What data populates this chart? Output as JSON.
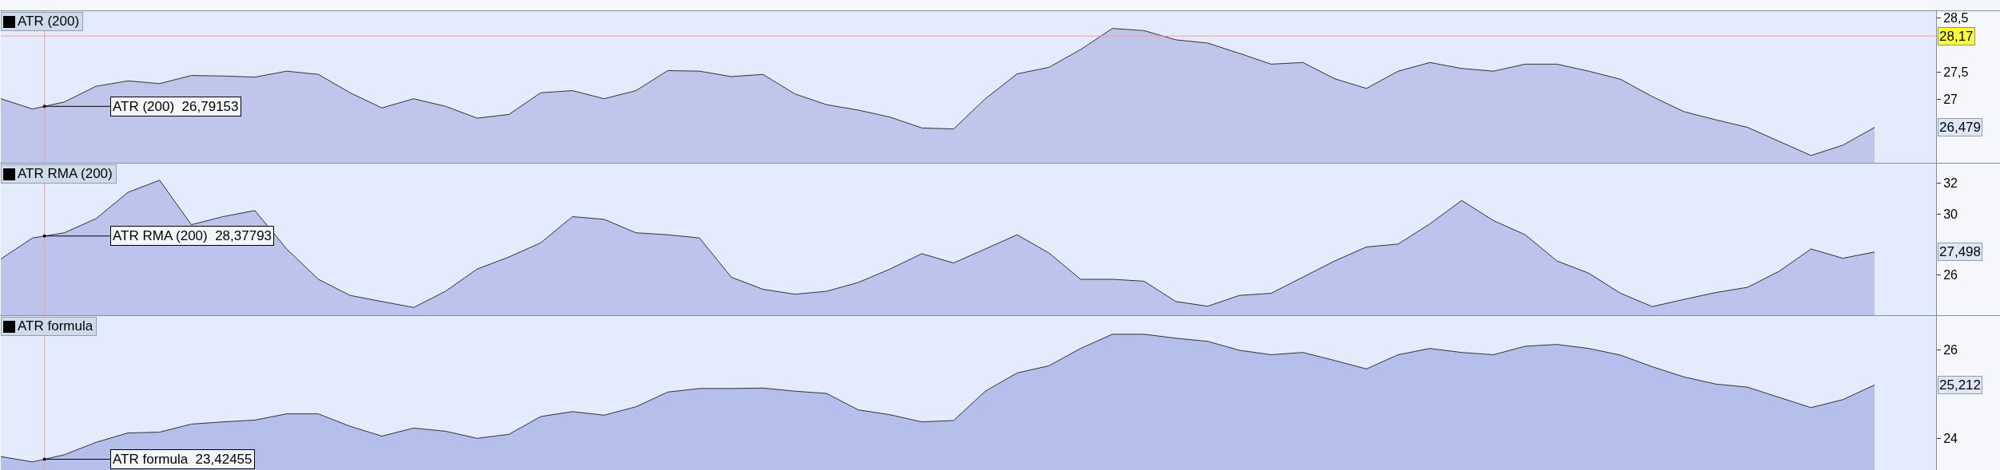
{
  "chart_data": [
    {
      "type": "area",
      "title": "ATR (200)",
      "color": "#c0c6eb",
      "tick_labels": "y",
      "grid": false,
      "categories": [
        null,
        null,
        null,
        null,
        null,
        null,
        null,
        null,
        null,
        null,
        null,
        null,
        null,
        null,
        null,
        null,
        null,
        null,
        null,
        null,
        null,
        null,
        null,
        null,
        null,
        null,
        null,
        null,
        null,
        null,
        null,
        null,
        null,
        null,
        null,
        null,
        null,
        null,
        null,
        null,
        null,
        null,
        null,
        null,
        null,
        null,
        null,
        null,
        null,
        null,
        null,
        null,
        null,
        null,
        null,
        null,
        null,
        null,
        null,
        null
      ],
      "values": [
        27.01,
        26.82,
        26.95,
        27.24,
        27.34,
        27.29,
        27.44,
        27.43,
        27.41,
        27.52,
        27.46,
        27.12,
        26.84,
        27.01,
        26.87,
        26.65,
        26.72,
        27.12,
        27.16,
        27.01,
        27.16,
        27.53,
        27.52,
        27.42,
        27.46,
        27.1,
        26.9,
        26.8,
        26.67,
        26.47,
        26.45,
        27.01,
        27.47,
        27.59,
        27.92,
        28.31,
        28.27,
        28.1,
        28.04,
        27.85,
        27.65,
        27.68,
        27.38,
        27.2,
        27.52,
        27.68,
        27.57,
        27.52,
        27.65,
        27.65,
        27.52,
        27.37,
        27.05,
        26.77,
        26.62,
        26.48,
        26.22,
        25.96,
        26.15,
        26.48
      ],
      "ylim": [
        25.81,
        28.63
      ],
      "yticks": [
        27,
        {
          "value": 27.5,
          "label": "27,5"
        },
        {
          "value": 28.5,
          "label": "28,5"
        }
      ],
      "ref_lines": [
        {
          "axis": "y",
          "value": 28.17,
          "label": "28,17",
          "color": "#f2a0a0"
        }
      ],
      "annotations": [
        "ATR (200)  26,79153",
        "26,479"
      ]
    },
    {
      "type": "area",
      "title": "ATR RMA (200)",
      "color": "#bcc3ed",
      "tick_labels": "y",
      "grid": false,
      "categories": [
        null,
        null,
        null,
        null,
        null,
        null,
        null,
        null,
        null,
        null,
        null,
        null,
        null,
        null,
        null,
        null,
        null,
        null,
        null,
        null,
        null,
        null,
        null,
        null,
        null,
        null,
        null,
        null,
        null,
        null,
        null,
        null,
        null,
        null,
        null,
        null,
        null,
        null,
        null,
        null,
        null,
        null,
        null,
        null,
        null,
        null,
        null,
        null,
        null,
        null,
        null,
        null,
        null,
        null,
        null,
        null,
        null,
        null,
        null,
        null
      ],
      "values": [
        27.04,
        28.42,
        28.76,
        29.69,
        31.41,
        32.21,
        29.29,
        29.82,
        30.22,
        27.7,
        25.71,
        24.65,
        24.25,
        23.86,
        24.92,
        26.38,
        27.17,
        28.1,
        29.82,
        29.64,
        28.76,
        28.63,
        28.42,
        25.85,
        25.05,
        24.73,
        24.92,
        25.5,
        26.38,
        27.39,
        26.78,
        27.7,
        28.63,
        27.44,
        25.71,
        25.71,
        25.58,
        24.25,
        23.94,
        24.65,
        24.79,
        25.85,
        26.91,
        27.83,
        28.02,
        29.35,
        30.88,
        29.56,
        28.63,
        26.91,
        26.11,
        24.79,
        23.92,
        24.39,
        24.84,
        25.18,
        26.24,
        27.7,
        27.09,
        27.5
      ],
      "ylim": [
        23.3,
        33.3
      ],
      "yticks": [
        26,
        30,
        32
      ],
      "annotations": [
        "ATR RMA (200)  28,37793",
        "27,498"
      ]
    },
    {
      "type": "area",
      "title": "ATR formula",
      "color": "#b5bfeb",
      "tick_labels": "y",
      "grid": false,
      "categories": [
        null,
        null,
        null,
        null,
        null,
        null,
        null,
        null,
        null,
        null,
        null,
        null,
        null,
        null,
        null,
        null,
        null,
        null,
        null,
        null,
        null,
        null,
        null,
        null,
        null,
        null,
        null,
        null,
        null,
        null,
        null,
        null,
        null,
        null,
        null,
        null,
        null,
        null,
        null,
        null,
        null,
        null,
        null,
        null,
        null,
        null,
        null,
        null,
        null,
        null,
        null,
        null,
        null,
        null,
        null,
        null,
        null,
        null,
        null,
        null
      ],
      "values": [
        23.6,
        23.48,
        23.64,
        23.92,
        24.13,
        24.15,
        24.33,
        24.38,
        24.42,
        24.56,
        24.56,
        24.28,
        24.06,
        24.24,
        24.17,
        24.01,
        24.1,
        24.5,
        24.61,
        24.53,
        24.72,
        25.05,
        25.13,
        25.13,
        25.14,
        25.07,
        25.02,
        24.65,
        24.54,
        24.38,
        24.41,
        25.07,
        25.48,
        25.64,
        26.03,
        26.35,
        26.35,
        26.26,
        26.19,
        25.99,
        25.89,
        25.94,
        25.76,
        25.57,
        25.89,
        26.03,
        25.94,
        25.89,
        26.08,
        26.12,
        26.03,
        25.88,
        25.62,
        25.39,
        25.23,
        25.16,
        24.93,
        24.7,
        24.88,
        25.21
      ],
      "ylim": [
        23.28,
        26.76
      ],
      "yticks": [
        24,
        26
      ],
      "annotations": [
        "ATR formula  23,42455",
        "25,212"
      ]
    }
  ]
}
